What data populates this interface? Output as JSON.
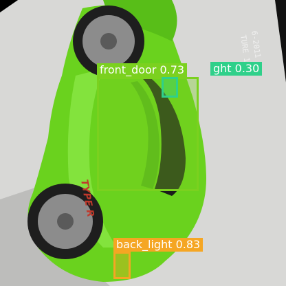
{
  "image": {
    "colors": {
      "car_body": "#6ad21e",
      "background": "#d8d8d6",
      "border": "#000000"
    }
  },
  "photo_text": {
    "date_line_1": "6-2011",
    "date_line_2": "TURE 12"
  },
  "detections": [
    {
      "label": "front_door 0.73",
      "color": "#7bd11f"
    },
    {
      "label": "ght 0.30",
      "color": "#2fd08a"
    },
    {
      "label": "back_light 0.83",
      "color": "#f5a623"
    }
  ]
}
